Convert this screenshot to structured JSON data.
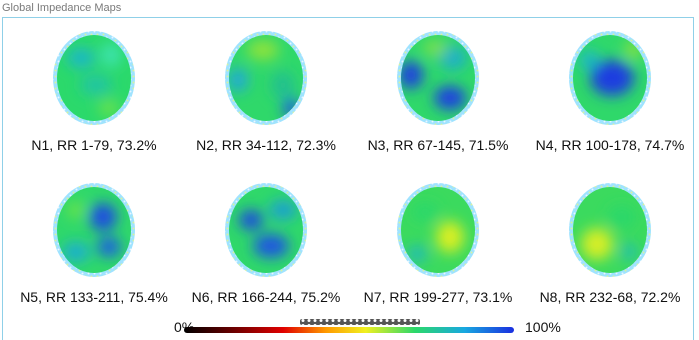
{
  "window": {
    "title": "Global Impedance Maps"
  },
  "panels": [
    {
      "label": "N1, RR 1-79, 73.2%"
    },
    {
      "label": "N2, RR 34-112, 72.3%"
    },
    {
      "label": "N3, RR 67-145, 71.5%"
    },
    {
      "label": "N4, RR 100-178, 74.7%"
    },
    {
      "label": "N5, RR 133-211, 75.4%"
    },
    {
      "label": "N6, RR 166-244, 75.2%"
    },
    {
      "label": "N7, RR 199-277, 73.1%"
    },
    {
      "label": "N8, RR 232-68, 72.2%"
    }
  ],
  "colorbar": {
    "min_label": "0%",
    "max_label": "100%"
  },
  "colors": {
    "frame_border": "#8fd0e8",
    "low": "#1a2fe0",
    "mid": "#29d86a",
    "high": "#e7f020"
  }
}
